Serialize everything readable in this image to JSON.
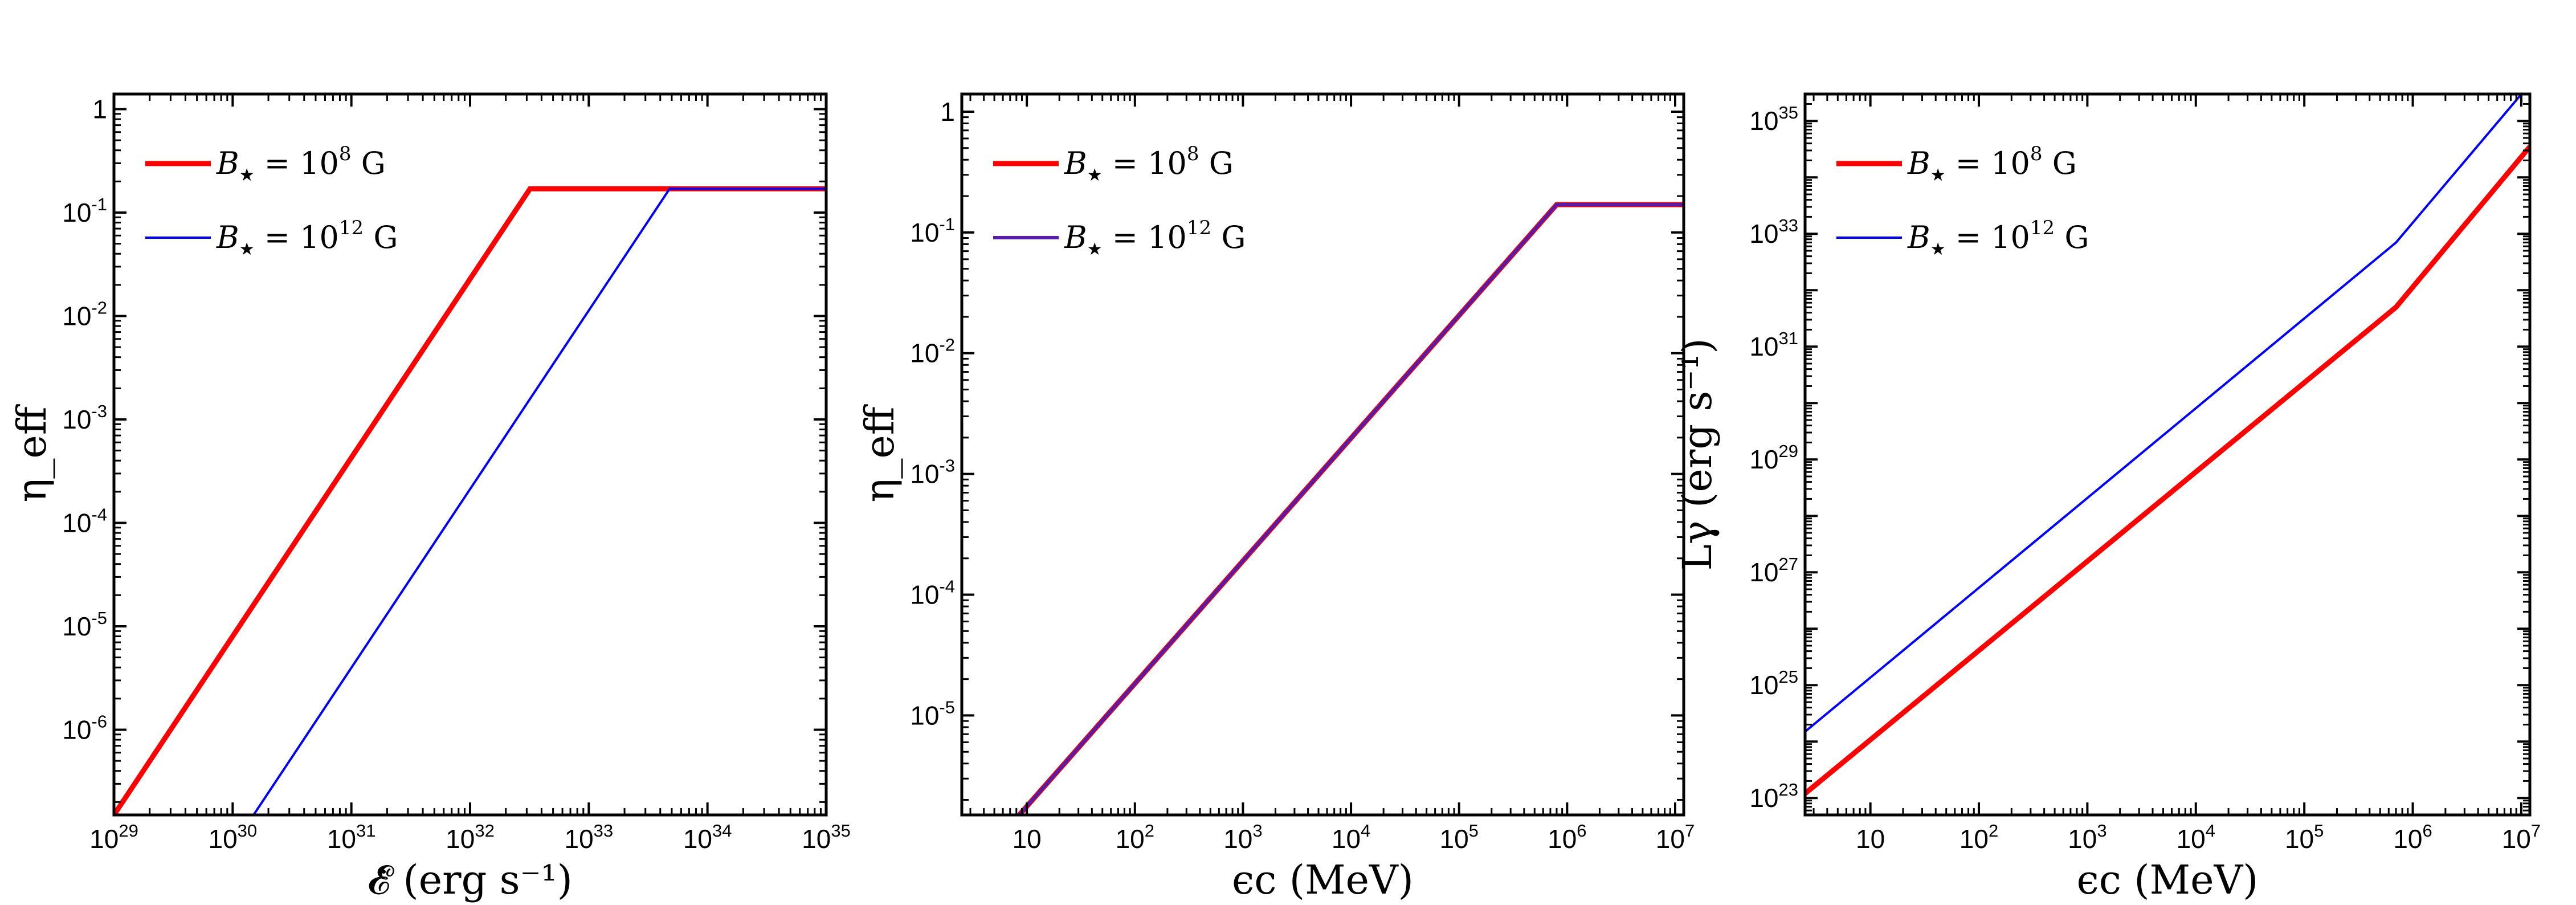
{
  "chart_data": [
    {
      "type": "line",
      "id": "left",
      "xscale": "log",
      "yscale": "log",
      "xlim": [
        1e+29,
        1e+35
      ],
      "ylim": [
        1.5e-07,
        1.4
      ],
      "xlabel": "𝓔̇ (erg s⁻¹)",
      "ylabel": "η_eff",
      "xticks": [
        {
          "v": 1e+29,
          "base": "10",
          "exp": "29"
        },
        {
          "v": 1e+30,
          "base": "10",
          "exp": "30"
        },
        {
          "v": 1e+31,
          "base": "10",
          "exp": "31"
        },
        {
          "v": 1e+32,
          "base": "10",
          "exp": "32"
        },
        {
          "v": 1e+33,
          "base": "10",
          "exp": "33"
        },
        {
          "v": 1e+34,
          "base": "10",
          "exp": "34"
        },
        {
          "v": 1e+35,
          "base": "10",
          "exp": "35"
        }
      ],
      "yticks": [
        {
          "v": 1,
          "base": "1",
          "exp": ""
        },
        {
          "v": 0.1,
          "base": "10",
          "exp": "-1"
        },
        {
          "v": 0.01,
          "base": "10",
          "exp": "-2"
        },
        {
          "v": 0.001,
          "base": "10",
          "exp": "-3"
        },
        {
          "v": 0.0001,
          "base": "10",
          "exp": "-4"
        },
        {
          "v": 1e-05,
          "base": "10",
          "exp": "-5"
        },
        {
          "v": 1e-06,
          "base": "10",
          "exp": "-6"
        }
      ],
      "series": [
        {
          "name": "B★ = 10^8 G",
          "color": "#ff0000",
          "width": 9,
          "points": [
            [
              1e+29,
              1.5e-07
            ],
            [
              3.2e+32,
              0.17
            ],
            [
              1e+35,
              0.17
            ]
          ]
        },
        {
          "name": "B★ = 10^12 G",
          "color": "#0000ff",
          "width": 4,
          "points": [
            [
              1.5e+30,
              1.5e-07
            ],
            [
              4.8e+33,
              0.17
            ],
            [
              1e+35,
              0.17
            ]
          ]
        }
      ]
    },
    {
      "type": "line",
      "id": "middle",
      "xscale": "log",
      "yscale": "log",
      "xlim": [
        2.5,
        12000000.0
      ],
      "ylim": [
        1.5e-06,
        1.4
      ],
      "xlabel": "ϵc (MeV)",
      "ylabel": "η_eff",
      "xticks": [
        {
          "v": 10,
          "base": "10",
          "exp": ""
        },
        {
          "v": 100.0,
          "base": "10",
          "exp": "2"
        },
        {
          "v": 1000.0,
          "base": "10",
          "exp": "3"
        },
        {
          "v": 10000.0,
          "base": "10",
          "exp": "4"
        },
        {
          "v": 100000.0,
          "base": "10",
          "exp": "5"
        },
        {
          "v": 1000000.0,
          "base": "10",
          "exp": "6"
        },
        {
          "v": 10000000.0,
          "base": "10",
          "exp": "7"
        }
      ],
      "yticks": [
        {
          "v": 1,
          "base": "1",
          "exp": ""
        },
        {
          "v": 0.1,
          "base": "10",
          "exp": "-1"
        },
        {
          "v": 0.01,
          "base": "10",
          "exp": "-2"
        },
        {
          "v": 0.001,
          "base": "10",
          "exp": "-3"
        },
        {
          "v": 0.0001,
          "base": "10",
          "exp": "-4"
        },
        {
          "v": 1e-05,
          "base": "10",
          "exp": "-5"
        }
      ],
      "series": [
        {
          "name": "B★ = 10^8 G",
          "color": "#ff0000",
          "width": 9,
          "points": [
            [
              8.5,
              1.5e-06
            ],
            [
              800000.0,
              0.17
            ],
            [
              12000000.0,
              0.17
            ]
          ]
        },
        {
          "name": "B★ = 10^12 G",
          "color": "#5a1aa8",
          "width": 6,
          "points": [
            [
              8.5,
              1.5e-06
            ],
            [
              800000.0,
              0.17
            ],
            [
              12000000.0,
              0.17
            ]
          ]
        }
      ]
    },
    {
      "type": "line",
      "id": "right",
      "xscale": "log",
      "yscale": "log",
      "xlim": [
        2.5,
        12000000.0
      ],
      "ylim": [
        5e+22,
        3e+35
      ],
      "xlabel": "ϵc (MeV)",
      "ylabel": "Lγ (erg s⁻¹)",
      "xticks": [
        {
          "v": 10,
          "base": "10",
          "exp": ""
        },
        {
          "v": 100.0,
          "base": "10",
          "exp": "2"
        },
        {
          "v": 1000.0,
          "base": "10",
          "exp": "3"
        },
        {
          "v": 10000.0,
          "base": "10",
          "exp": "4"
        },
        {
          "v": 100000.0,
          "base": "10",
          "exp": "5"
        },
        {
          "v": 1000000.0,
          "base": "10",
          "exp": "6"
        },
        {
          "v": 10000000.0,
          "base": "10",
          "exp": "7"
        }
      ],
      "yticks": [
        {
          "v": 1e+35,
          "base": "10",
          "exp": "35"
        },
        {
          "v": 1e+33,
          "base": "10",
          "exp": "33"
        },
        {
          "v": 1e+31,
          "base": "10",
          "exp": "31"
        },
        {
          "v": 1e+29,
          "base": "10",
          "exp": "29"
        },
        {
          "v": 1e+27,
          "base": "10",
          "exp": "27"
        },
        {
          "v": 1e+25,
          "base": "10",
          "exp": "25"
        },
        {
          "v": 1e+23,
          "base": "10",
          "exp": "23"
        }
      ],
      "series": [
        {
          "name": "B★ = 10^8 G",
          "color": "#ff0000",
          "width": 9,
          "points": [
            [
              2.5,
              1.2e+23
            ],
            [
              700000.0,
              5e+31
            ],
            [
              12000000.0,
              3.5e+34
            ]
          ]
        },
        {
          "name": "B★ = 10^12 G",
          "color": "#0000ff",
          "width": 4,
          "points": [
            [
              2.5,
              1.5e+24
            ],
            [
              700000.0,
              7e+32
            ],
            [
              12000000.0,
              4.5e+35
            ]
          ]
        }
      ]
    }
  ],
  "legend": {
    "label_a_prefix": "B",
    "label_a_star": "★",
    "label_a_mid": " = 10",
    "label_a_exp": "8",
    "label_a_unit": " G",
    "label_b_prefix": "B",
    "label_b_star": "★",
    "label_b_mid": " = 10",
    "label_b_exp": "12",
    "label_b_unit": " G"
  },
  "colors": {
    "red": "#ff0000",
    "blue": "#0000ff",
    "purple": "#5a1aa8"
  }
}
